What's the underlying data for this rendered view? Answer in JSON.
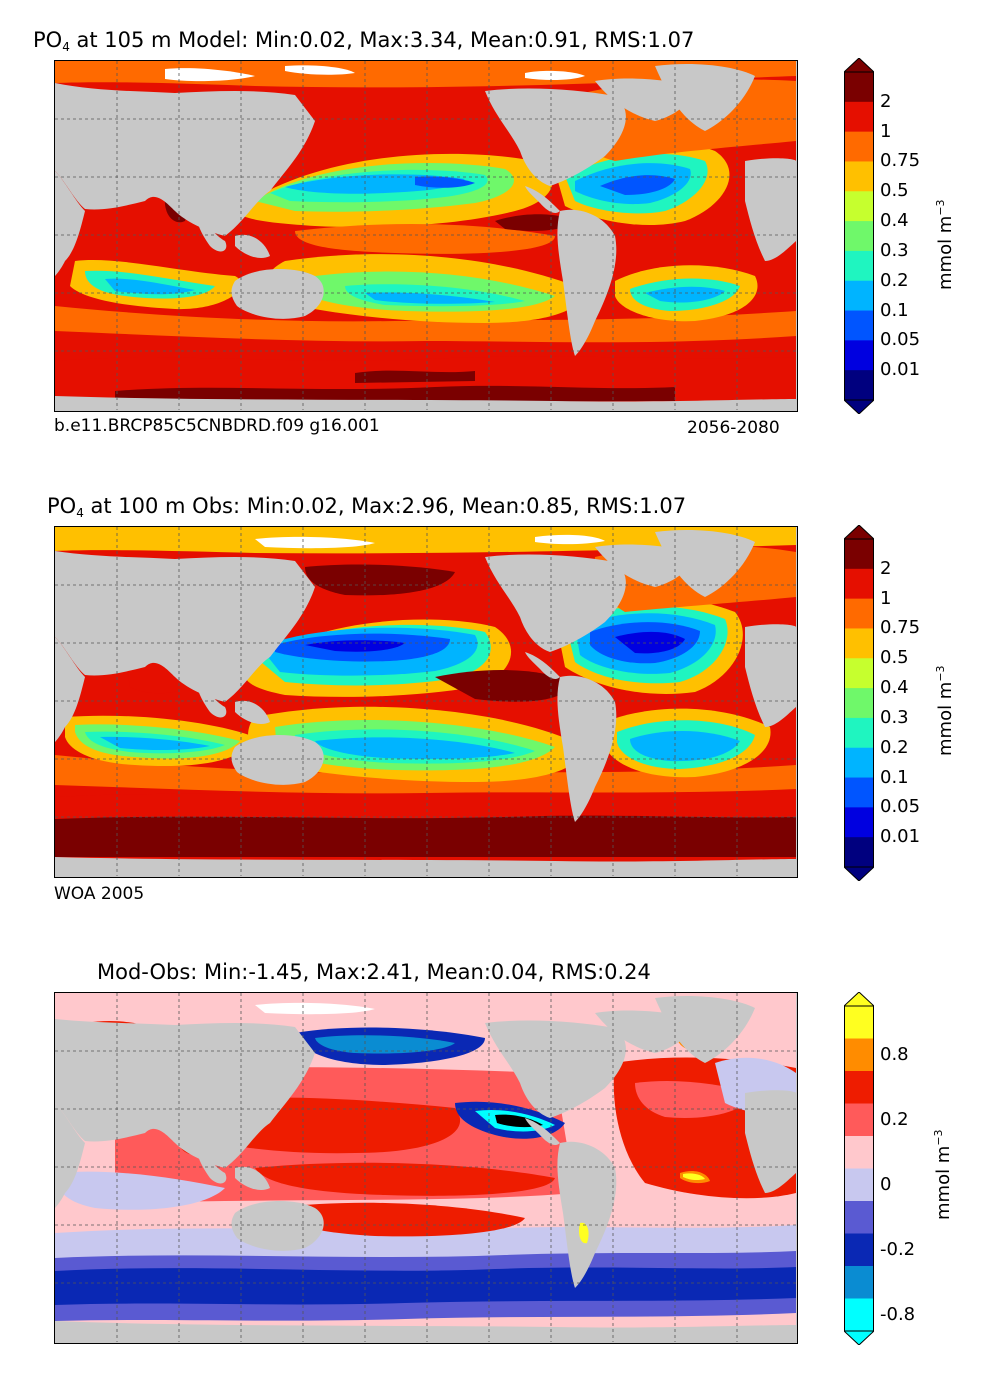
{
  "panels": [
    {
      "title_prefix": "PO",
      "title_sub": "4",
      "title_rest": " at 105 m Model: Min:0.02, Max:3.34, Mean:0.91, RMS:1.07",
      "caption_left": "b.e11.BRCP85C5CNBDRD.f09 g16.001",
      "caption_right": "2056-2080",
      "colorbar": {
        "labels": [
          "2",
          "1",
          "0.75",
          "0.5",
          "0.4",
          "0.3",
          "0.2",
          "0.1",
          "0.05",
          "0.01"
        ],
        "colors": [
          "#7a0000",
          "#e50f00",
          "#ff6a00",
          "#ffc000",
          "#c6ff2e",
          "#6ff86a",
          "#1ff5c0",
          "#00b4ff",
          "#0055ff",
          "#0000e0",
          "#00007f"
        ],
        "unit": "mmol m",
        "unit_exp": "−3"
      }
    },
    {
      "title_prefix": "PO",
      "title_sub": "4",
      "title_rest": " at 100 m Obs: Min:0.02, Max:2.96, Mean:0.85, RMS:1.07",
      "caption_left": "WOA 2005",
      "caption_right": "",
      "colorbar": {
        "labels": [
          "2",
          "1",
          "0.75",
          "0.5",
          "0.4",
          "0.3",
          "0.2",
          "0.1",
          "0.05",
          "0.01"
        ],
        "colors": [
          "#7a0000",
          "#e50f00",
          "#ff6a00",
          "#ffc000",
          "#c6ff2e",
          "#6ff86a",
          "#1ff5c0",
          "#00b4ff",
          "#0055ff",
          "#0000e0",
          "#00007f"
        ],
        "unit": "mmol m",
        "unit_exp": "−3"
      }
    },
    {
      "title_prefix": "",
      "title_sub": "",
      "title_rest": "Mod-Obs: Min:-1.45, Max:2.41, Mean:0.04, RMS:0.24",
      "caption_left": "",
      "caption_right": "",
      "colorbar": {
        "labels": [
          "0.8",
          "0.2",
          "0",
          "-0.2",
          "-0.8"
        ],
        "colors": [
          "#ffff20",
          "#ff8c00",
          "#ee1c00",
          "#ff5a5a",
          "#ffc8cc",
          "#c8c8ef",
          "#5a5ad2",
          "#0a28b4",
          "#0a8cd2",
          "#00ffff"
        ],
        "unit": "mmol m",
        "unit_exp": "−3"
      }
    }
  ],
  "colors": {
    "land": "#c8c8c8",
    "no_data": "#ffffff",
    "frame": "#000000"
  }
}
